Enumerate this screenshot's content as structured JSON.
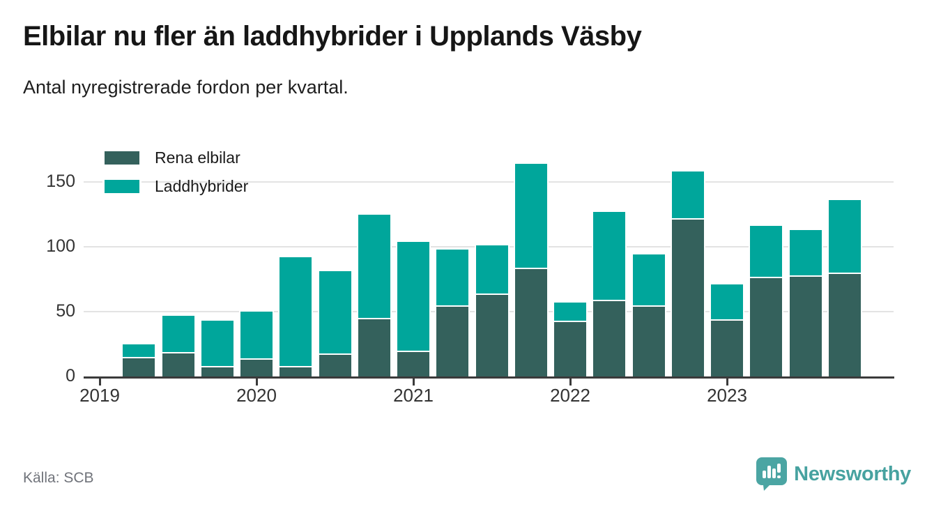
{
  "header": {
    "title": "Elbilar nu fler än laddhybrider i Upplands Väsby",
    "subtitle": "Antal nyregistrerade fordon per kvartal."
  },
  "footer": {
    "source": "Källa: SCB",
    "brand": "Newsworthy"
  },
  "colors": {
    "elbilar": "#34615c",
    "laddhybrider": "#00a69b",
    "axis": "#3b3b3b",
    "grid": "#e3e3e3",
    "brand": "#47a2a0"
  },
  "chart_data": {
    "type": "bar",
    "stacked": true,
    "title": "Elbilar nu fler än laddhybrider i Upplands Väsby",
    "subtitle": "Antal nyregistrerade fordon per kvartal.",
    "categories": [
      "2019-Q2",
      "2019-Q3",
      "2019-Q4",
      "2020-Q1",
      "2020-Q2",
      "2020-Q3",
      "2020-Q4",
      "2021-Q1",
      "2021-Q2",
      "2021-Q3",
      "2021-Q4",
      "2022-Q1",
      "2022-Q2",
      "2022-Q3",
      "2022-Q4",
      "2023-Q1",
      "2023-Q2",
      "2023-Q3",
      "2023-Q4"
    ],
    "series": [
      {
        "name": "Rena elbilar",
        "color": "#34615c",
        "values": [
          15,
          19,
          8,
          14,
          8,
          18,
          45,
          20,
          55,
          64,
          84,
          43,
          59,
          55,
          122,
          44,
          77,
          78,
          80
        ]
      },
      {
        "name": "Laddhybrider",
        "color": "#00a69b",
        "values": [
          10,
          28,
          35,
          36,
          84,
          63,
          80,
          84,
          43,
          37,
          80,
          14,
          68,
          39,
          36,
          27,
          39,
          35,
          56
        ]
      }
    ],
    "x_tick_labels": [
      "2019",
      "2020",
      "2021",
      "2022",
      "2023"
    ],
    "yticks": [
      0,
      50,
      100,
      150
    ],
    "ylim": [
      0,
      170
    ],
    "grid": "horizontal",
    "legend_position": "top-left"
  }
}
